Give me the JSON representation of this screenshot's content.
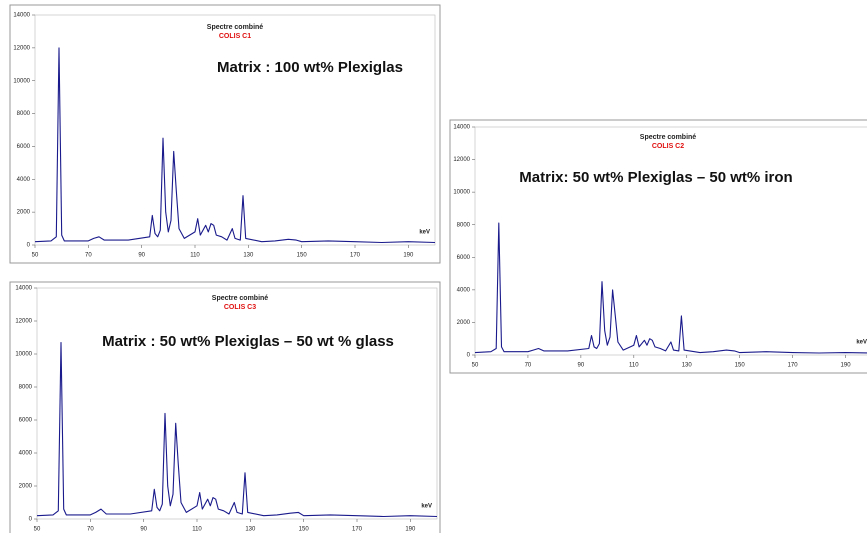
{
  "chart_data": [
    {
      "type": "line",
      "title": "Spectre combiné",
      "subtitle": "COLIS C1",
      "annotation": "Matrix : 100 wt% Plexiglas",
      "x_label": "keV",
      "color": "#1a1a8c",
      "x": [
        50,
        56,
        58,
        59,
        60,
        61,
        70,
        72,
        74,
        76,
        85,
        93,
        94,
        95,
        96,
        97,
        98,
        99,
        100,
        101,
        102,
        103,
        104,
        106,
        110,
        111,
        112,
        114,
        115,
        116,
        117,
        118,
        120,
        122,
        124,
        125,
        127,
        128,
        129,
        135,
        140,
        145,
        148,
        150,
        160,
        170,
        180,
        190,
        200
      ],
      "values": [
        200,
        250,
        500,
        12000,
        600,
        250,
        250,
        400,
        500,
        300,
        300,
        500,
        1800,
        700,
        500,
        900,
        6500,
        2000,
        800,
        1500,
        5700,
        3300,
        1000,
        400,
        800,
        1600,
        600,
        1200,
        800,
        1300,
        1200,
        600,
        500,
        300,
        1000,
        400,
        300,
        3000,
        400,
        200,
        250,
        350,
        300,
        200,
        250,
        200,
        150,
        200,
        150
      ],
      "xlim": [
        50,
        200
      ],
      "xticks": [
        50,
        70,
        90,
        110,
        130,
        150,
        170,
        190
      ],
      "ylim": [
        0,
        14000
      ],
      "yticks": [
        0,
        2000,
        4000,
        6000,
        8000,
        10000,
        12000,
        14000
      ]
    },
    {
      "type": "line",
      "title": "Spectre combiné",
      "subtitle": "COLIS C2",
      "annotation": "Matrix:  50 wt% Plexiglas – 50 wt% iron",
      "x_label": "keV",
      "color": "#1a1a8c",
      "x": [
        50,
        56,
        58,
        59,
        60,
        61,
        70,
        72,
        74,
        76,
        85,
        93,
        94,
        95,
        96,
        97,
        98,
        99,
        100,
        101,
        102,
        103,
        104,
        106,
        110,
        111,
        112,
        114,
        115,
        116,
        117,
        118,
        120,
        122,
        124,
        125,
        127,
        128,
        129,
        135,
        140,
        145,
        148,
        150,
        160,
        170,
        180,
        190,
        200
      ],
      "values": [
        150,
        200,
        400,
        8100,
        500,
        200,
        200,
        300,
        400,
        250,
        250,
        400,
        1200,
        500,
        400,
        700,
        4500,
        1500,
        600,
        1100,
        4000,
        2400,
        800,
        300,
        600,
        1200,
        500,
        900,
        600,
        1000,
        900,
        500,
        400,
        250,
        800,
        300,
        250,
        2400,
        300,
        150,
        200,
        300,
        250,
        150,
        200,
        150,
        120,
        150,
        120
      ],
      "xlim": [
        50,
        200
      ],
      "xticks": [
        50,
        70,
        90,
        110,
        130,
        150,
        170,
        190
      ],
      "ylim": [
        0,
        14000
      ],
      "yticks": [
        0,
        2000,
        4000,
        6000,
        8000,
        10000,
        12000,
        14000
      ]
    },
    {
      "type": "line",
      "title": "Spectre combiné",
      "subtitle": "COLIS C3",
      "annotation": "Matrix :  50 wt% Plexiglas – 50 wt % glass",
      "x_label": "keV",
      "color": "#1a1a8c",
      "x": [
        50,
        56,
        58,
        59,
        60,
        61,
        70,
        72,
        74,
        76,
        85,
        93,
        94,
        95,
        96,
        97,
        98,
        99,
        100,
        101,
        102,
        103,
        104,
        106,
        110,
        111,
        112,
        114,
        115,
        116,
        117,
        118,
        120,
        122,
        124,
        125,
        127,
        128,
        129,
        135,
        140,
        145,
        148,
        150,
        160,
        170,
        180,
        190,
        200
      ],
      "values": [
        200,
        250,
        500,
        10700,
        600,
        250,
        250,
        400,
        600,
        300,
        300,
        500,
        1800,
        700,
        500,
        900,
        6400,
        2000,
        800,
        1500,
        5800,
        3300,
        1000,
        400,
        800,
        1600,
        600,
        1200,
        800,
        1300,
        1200,
        600,
        500,
        300,
        1000,
        400,
        300,
        2800,
        400,
        200,
        250,
        350,
        400,
        200,
        250,
        200,
        150,
        200,
        150
      ],
      "xlim": [
        50,
        200
      ],
      "xticks": [
        50,
        70,
        90,
        110,
        130,
        150,
        170,
        190
      ],
      "ylim": [
        0,
        14000
      ],
      "yticks": [
        0,
        2000,
        4000,
        6000,
        8000,
        10000,
        12000,
        14000
      ]
    }
  ]
}
